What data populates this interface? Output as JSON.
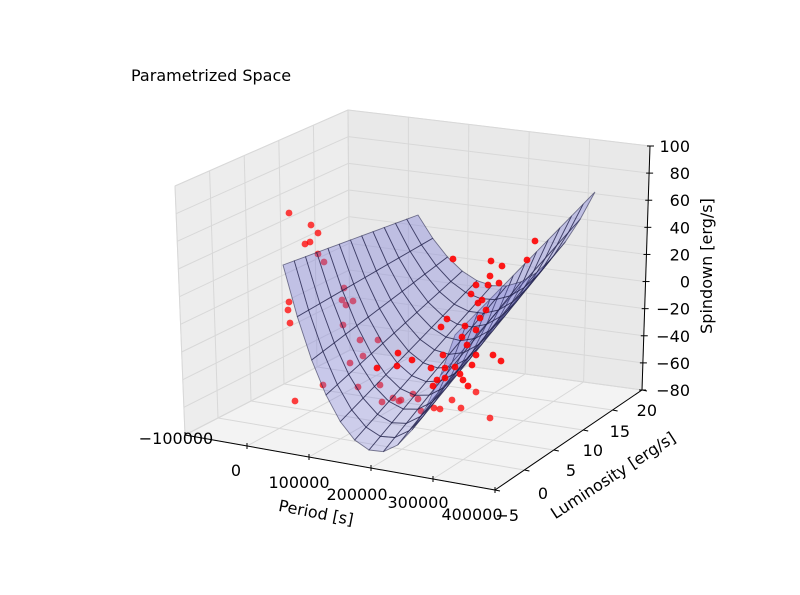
{
  "chart_data": {
    "type": "scatter",
    "title": "Parametrized Space",
    "xlabel": "Period [s]",
    "ylabel": "Luminosity [erg/s]",
    "zlabel": "Spindown [erg/s]",
    "xlim": [
      -100000,
      400000
    ],
    "ylim": [
      -5,
      20
    ],
    "zlim": [
      -80,
      100
    ],
    "xticks": [
      "−100000",
      "0",
      "100000",
      "200000",
      "300000",
      "400000"
    ],
    "yticks": [
      "−5",
      "0",
      "5",
      "10",
      "15",
      "20"
    ],
    "zticks": [
      "−80",
      "−60",
      "−40",
      "−20",
      "0",
      "20",
      "40",
      "60",
      "80",
      "100"
    ],
    "grid": true,
    "projection": "3d",
    "series": [
      {
        "kind": "surface",
        "color": "#0000ff",
        "alpha": 0.3,
        "model": "parabolic trough fit"
      },
      {
        "kind": "scatter",
        "color": "#ff0000"
      }
    ]
  },
  "colors": {
    "pane_back": "#e9e9e9",
    "pane_side": "#ededed",
    "pane_floor": "#f3f3f3",
    "surface_fill": "#7b7bd9",
    "surface_edge": "#1a1a40",
    "points": "#ff0000"
  }
}
